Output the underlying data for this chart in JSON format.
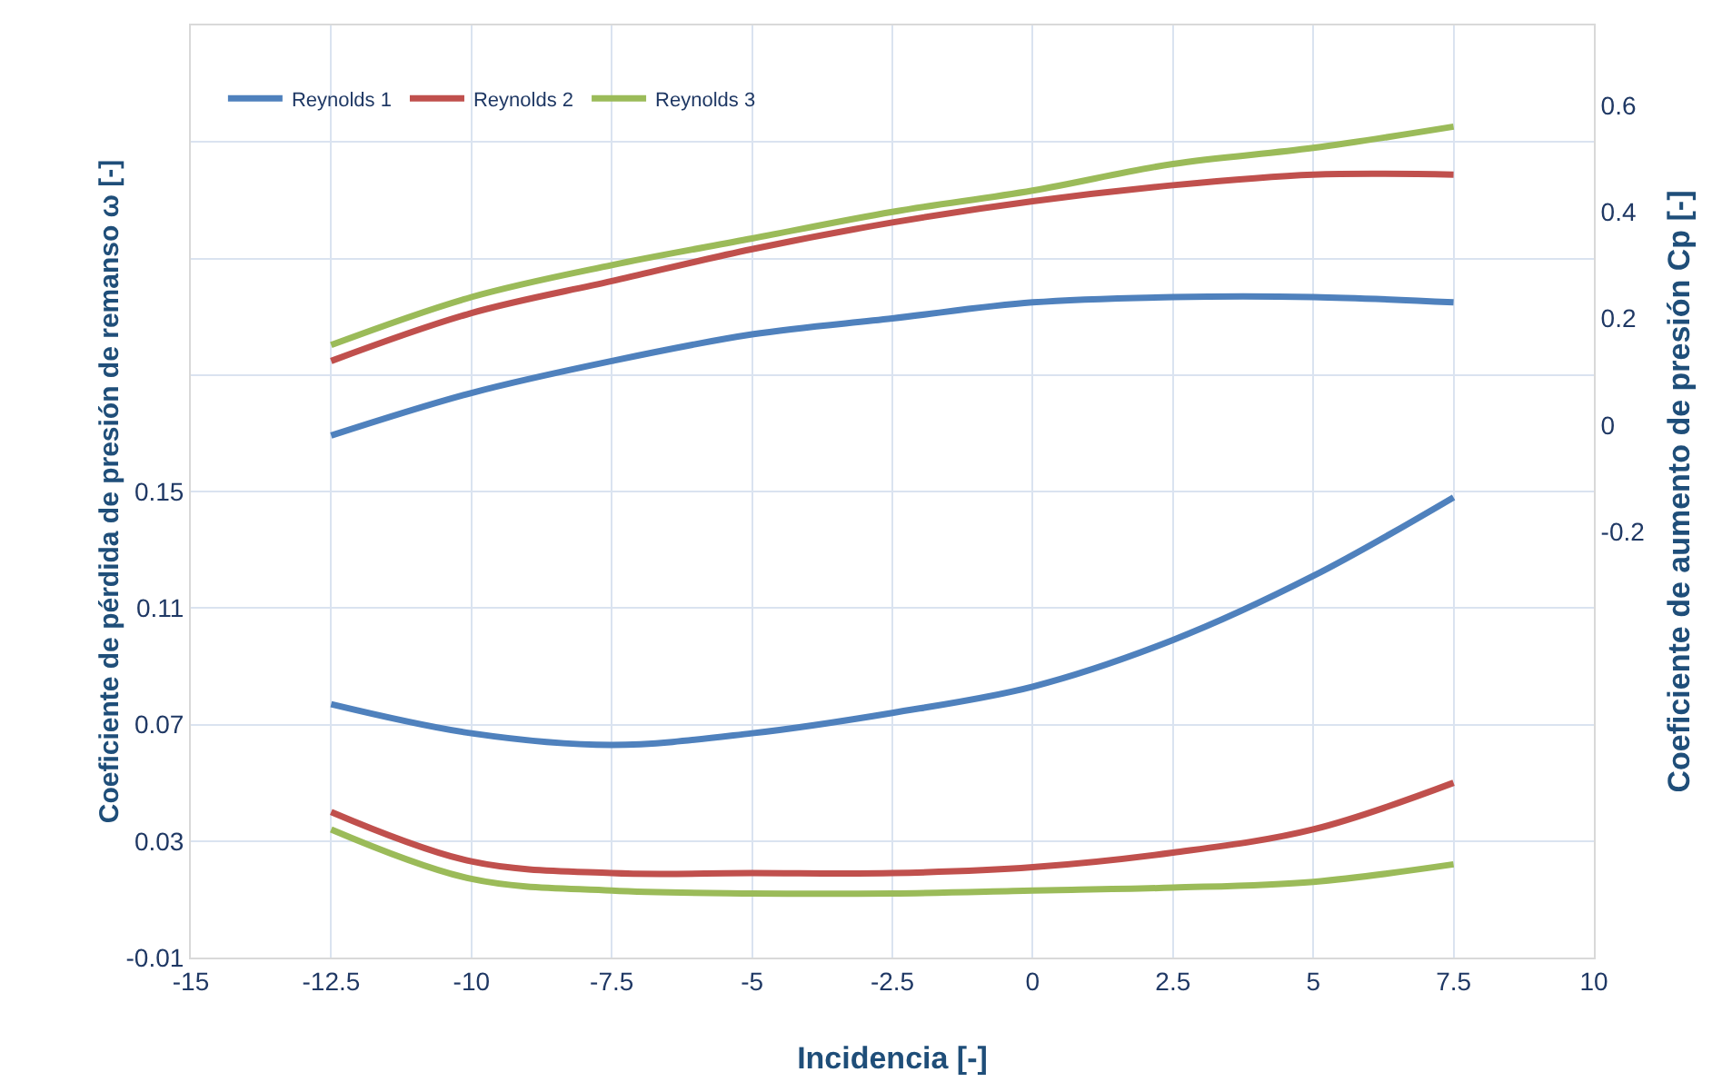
{
  "chart_data": {
    "type": "line",
    "xlabel": "Incidencia [-]",
    "ylabel": "Coeficiente de pérdida de presión de remanso ω [-]",
    "y2label": "Coeficiente de aumento de presión Cp [-]",
    "x": [
      -12.5,
      -10,
      -7.5,
      -5,
      -2.5,
      0,
      2.5,
      5,
      7.5
    ],
    "series": [
      {
        "name": "Reynolds 1",
        "color": "#4f81bd",
        "values": [
          0.077,
          0.067,
          0.063,
          0.067,
          0.074,
          0.083,
          0.099,
          0.121,
          0.148
        ]
      },
      {
        "name": "Reynolds 2",
        "color": "#c0504d",
        "values": [
          0.04,
          0.023,
          0.019,
          0.019,
          0.019,
          0.021,
          0.026,
          0.034,
          0.05
        ]
      },
      {
        "name": "Reynolds 3",
        "color": "#9bbb59",
        "values": [
          0.034,
          0.017,
          0.013,
          0.012,
          0.012,
          0.013,
          0.014,
          0.016,
          0.022
        ]
      },
      {
        "color": "#4f81bd",
        "axis": "y2",
        "values": [
          -0.02,
          0.06,
          0.12,
          0.17,
          0.2,
          0.23,
          0.24,
          0.24,
          0.23
        ]
      },
      {
        "color": "#c0504d",
        "axis": "y2",
        "values": [
          0.12,
          0.21,
          0.27,
          0.33,
          0.38,
          0.42,
          0.45,
          0.47,
          0.47
        ]
      },
      {
        "color": "#9bbb59",
        "axis": "y2",
        "values": [
          0.15,
          0.24,
          0.3,
          0.35,
          0.4,
          0.44,
          0.49,
          0.52,
          0.56
        ]
      }
    ],
    "xlim": [
      -15,
      10
    ],
    "xticks": [
      -15,
      -12.5,
      -10,
      -7.5,
      -5,
      -2.5,
      0,
      2.5,
      5,
      7.5,
      10
    ],
    "ylim": [
      -0.01,
      0.31
    ],
    "yticks": [
      -0.01,
      0.03,
      0.07,
      0.11,
      0.15,
      {
        "value": 0.19,
        "label": null
      },
      {
        "value": 0.23,
        "label": null
      },
      {
        "value": 0.27,
        "label": null
      },
      {
        "value": 0.31,
        "label": null
      }
    ],
    "y2lim": [
      -1,
      0.75
    ],
    "y2ticks": [
      -0.2,
      0,
      0.2,
      0.4,
      0.6
    ],
    "grid": true,
    "legend": "top left",
    "marker": "none",
    "line_style": "solid"
  }
}
